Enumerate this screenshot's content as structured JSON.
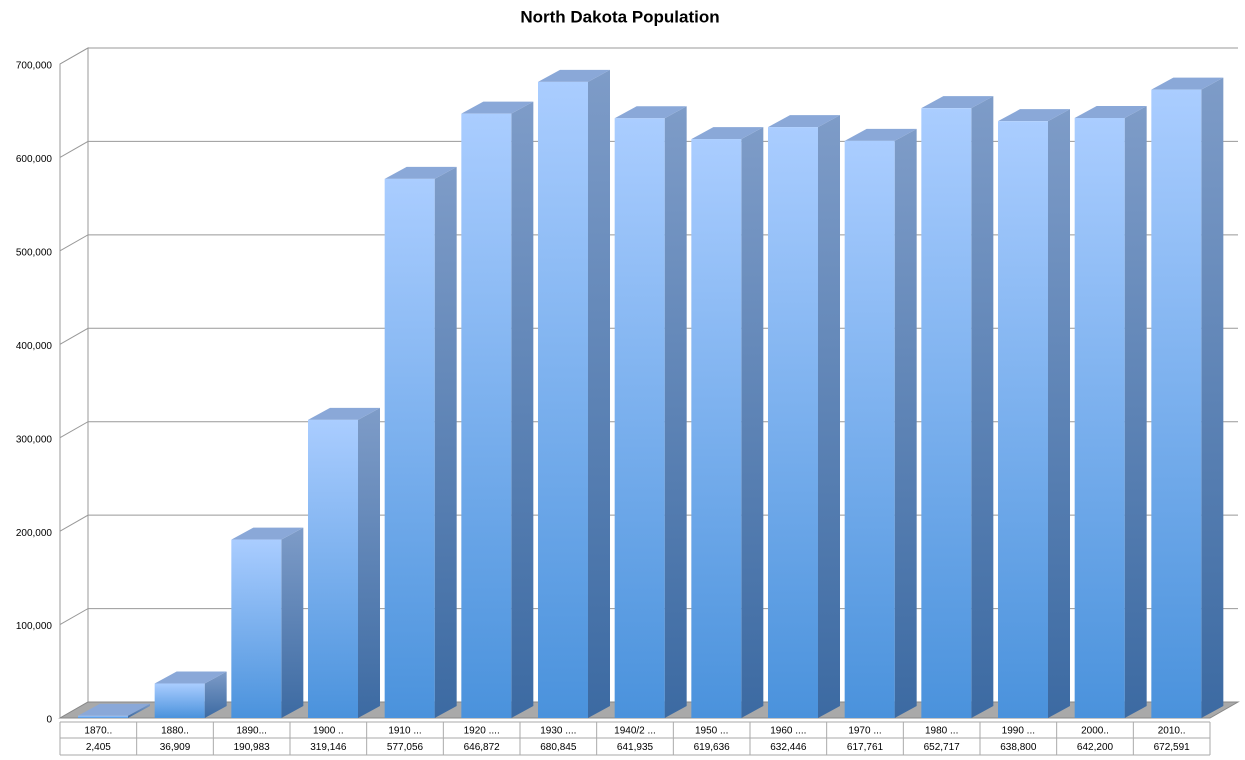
{
  "chart_data": {
    "type": "bar3d",
    "title": "North Dakota Population",
    "categories": [
      "1870..",
      "1880..",
      "1890...",
      "1900 ..",
      "1910 ...",
      "1920 ....",
      "1930 ....",
      "1940/2 ...",
      "1950 ...",
      "1960 ....",
      "1970 ...",
      "1980 ...",
      "1990 ...",
      "2000..",
      "2010.."
    ],
    "values": [
      2405,
      36909,
      190983,
      319146,
      577056,
      646872,
      680845,
      641935,
      619636,
      632446,
      617761,
      652717,
      638800,
      642200,
      672591
    ],
    "value_labels": [
      "2,405",
      "36,909",
      "190,983",
      "319,146",
      "577,056",
      "646,872",
      "680,845",
      "641,935",
      "619,636",
      "632,446",
      "617,761",
      "652,717",
      "638,800",
      "642,200",
      "672,591"
    ],
    "color": "#5b9be0",
    "ylim": [
      0,
      700000
    ],
    "yticks": [
      0,
      {
        "value": 100000,
        "label": "100,000"
      },
      {
        "value": 200000,
        "label": "200,000"
      },
      {
        "value": 300000,
        "label": "300,000"
      },
      {
        "value": 400000,
        "label": "400,000"
      },
      {
        "value": 500000,
        "label": "500,000"
      },
      {
        "value": 600000,
        "label": "600,000"
      },
      {
        "value": 700000,
        "label": "700,000"
      }
    ],
    "grid": true
  }
}
